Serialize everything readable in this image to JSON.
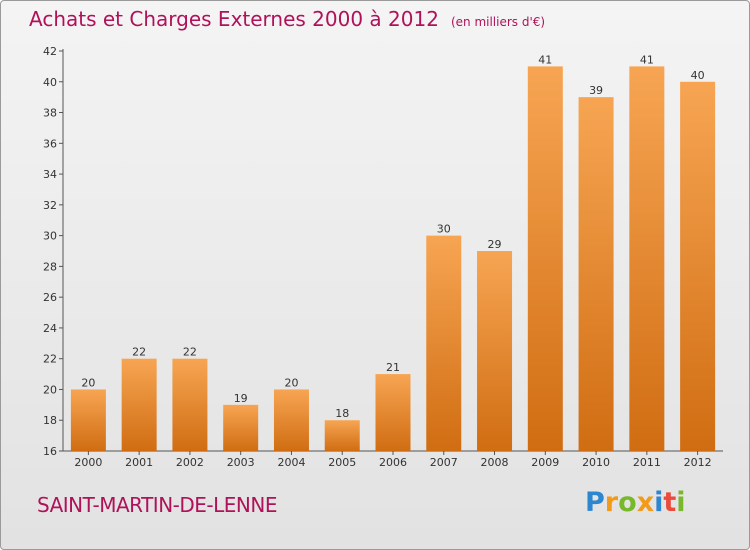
{
  "header": {
    "title": "Achats et Charges Externes 2000 à 2012",
    "unit": "(en milliers d'€)"
  },
  "footer": {
    "commune": "SAINT-MARTIN-DE-LENNE",
    "logo": [
      "P",
      "r",
      "o",
      "x",
      "i",
      "t",
      "i"
    ],
    "logo_colors": [
      "#2e86d1",
      "#f29a1a",
      "#78b82a",
      "#f29a1a",
      "#2e86d1",
      "#e94b3c",
      "#78b82a"
    ]
  },
  "colors": {
    "bar_top": "#f7a553",
    "bar_bottom": "#d06d12",
    "title": "#b0125a"
  },
  "chart_data": {
    "type": "bar",
    "title": "Achats et Charges Externes 2000 à 2012",
    "subtitle": "(en milliers d'€)",
    "categories": [
      "2000",
      "2001",
      "2002",
      "2003",
      "2004",
      "2005",
      "2006",
      "2007",
      "2008",
      "2009",
      "2010",
      "2011",
      "2012"
    ],
    "values": [
      20,
      22,
      22,
      19,
      20,
      18,
      21,
      30,
      29,
      41,
      39,
      41,
      40
    ],
    "ylim": [
      16,
      42
    ],
    "yticks": [
      16,
      18,
      20,
      22,
      24,
      26,
      28,
      30,
      32,
      34,
      36,
      38,
      40,
      42
    ],
    "grid": false,
    "legend": "none"
  }
}
